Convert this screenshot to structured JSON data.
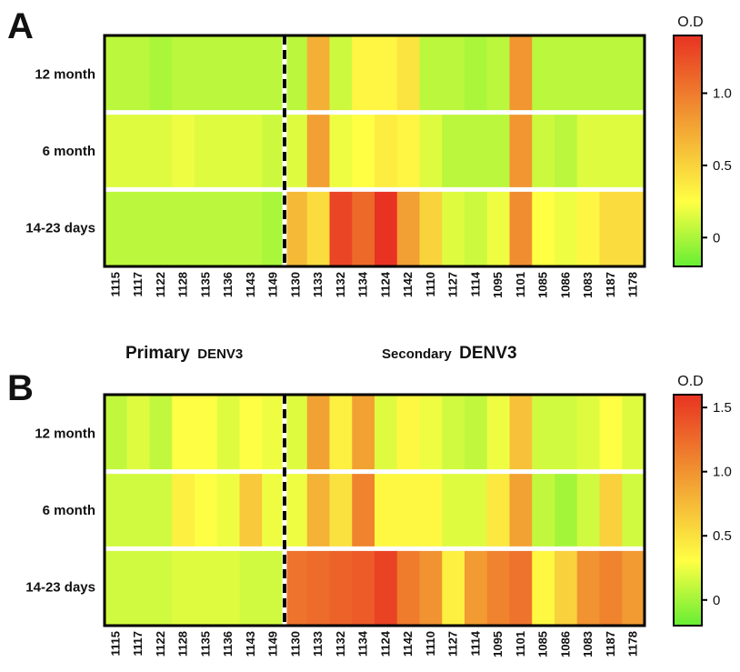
{
  "chart_data": [
    {
      "type": "heatmap",
      "panel": "A",
      "rows": [
        "12 month",
        "6 month",
        "14-23 days"
      ],
      "columns": [
        "1115",
        "1117",
        "1122",
        "1128",
        "1135",
        "1136",
        "1143",
        "1149",
        "1130",
        "1133",
        "1132",
        "1134",
        "1124",
        "1142",
        "1110",
        "1127",
        "1114",
        "1095",
        "1101",
        "1085",
        "1086",
        "1083",
        "1187",
        "1178"
      ],
      "values": [
        [
          0.05,
          0.05,
          0.0,
          0.05,
          0.05,
          0.05,
          0.05,
          0.05,
          0.05,
          0.7,
          0.1,
          0.3,
          0.3,
          0.4,
          0.05,
          0.05,
          0.0,
          0.05,
          0.85,
          0.05,
          0.05,
          0.05,
          0.05,
          0.05
        ],
        [
          0.15,
          0.15,
          0.15,
          0.2,
          0.15,
          0.15,
          0.15,
          0.1,
          0.15,
          0.8,
          0.2,
          0.25,
          0.35,
          0.3,
          0.15,
          0.05,
          0.05,
          0.05,
          0.85,
          0.1,
          0.05,
          0.15,
          0.15,
          0.15
        ],
        [
          0.05,
          0.05,
          0.05,
          0.05,
          0.05,
          0.05,
          0.05,
          0.0,
          0.65,
          0.45,
          1.3,
          1.1,
          1.4,
          0.8,
          0.5,
          0.15,
          0.1,
          0.2,
          0.9,
          0.25,
          0.2,
          0.3,
          0.45,
          0.45
        ]
      ],
      "colorbar": {
        "title": "O.D",
        "ticks": [
          0,
          0.5,
          1.0
        ],
        "tick_labels": [
          "0",
          "0.5",
          "1.0"
        ],
        "range": [
          -0.2,
          1.4
        ],
        "colors": [
          "#66ee33",
          "#ffff44",
          "#f2a033",
          "#e83322"
        ]
      }
    },
    {
      "type": "heatmap",
      "panel": "B",
      "rows": [
        "12 month",
        "6 month",
        "14-23 days"
      ],
      "columns": [
        "1115",
        "1117",
        "1122",
        "1128",
        "1135",
        "1136",
        "1143",
        "1149",
        "1130",
        "1133",
        "1132",
        "1134",
        "1124",
        "1142",
        "1110",
        "1127",
        "1114",
        "1095",
        "1101",
        "1085",
        "1086",
        "1083",
        "1187",
        "1178"
      ],
      "values": [
        [
          0.1,
          0.2,
          0.1,
          0.3,
          0.3,
          0.2,
          0.3,
          0.25,
          0.2,
          0.9,
          0.4,
          0.9,
          0.2,
          0.35,
          0.25,
          0.15,
          0.1,
          0.25,
          0.7,
          0.15,
          0.15,
          0.2,
          0.3,
          0.2
        ],
        [
          0.15,
          0.15,
          0.15,
          0.4,
          0.3,
          0.25,
          0.65,
          0.25,
          0.25,
          0.8,
          0.5,
          1.1,
          0.35,
          0.35,
          0.35,
          0.2,
          0.2,
          0.45,
          0.9,
          0.1,
          0.0,
          0.15,
          0.6,
          0.15
        ],
        [
          0.15,
          0.15,
          0.15,
          0.2,
          0.2,
          0.2,
          0.15,
          0.15,
          1.2,
          1.25,
          1.3,
          1.35,
          1.5,
          1.15,
          1.0,
          0.4,
          0.95,
          1.1,
          1.2,
          0.35,
          0.6,
          1.0,
          1.1,
          0.95
        ]
      ],
      "colorbar": {
        "title": "O.D",
        "ticks": [
          0,
          0.5,
          1.0,
          1.5
        ],
        "tick_labels": [
          "0",
          "0.5",
          "1.0",
          "1.5"
        ],
        "range": [
          -0.2,
          1.6
        ],
        "colors": [
          "#66ee33",
          "#ffff44",
          "#f2a033",
          "#e83322"
        ]
      }
    }
  ],
  "labels": {
    "panel_a": "A",
    "panel_b": "B",
    "group_primary_big": "Primary",
    "group_primary_small": "DENV3",
    "group_secondary_small": "Secondary",
    "group_secondary_big": "DENV3"
  }
}
